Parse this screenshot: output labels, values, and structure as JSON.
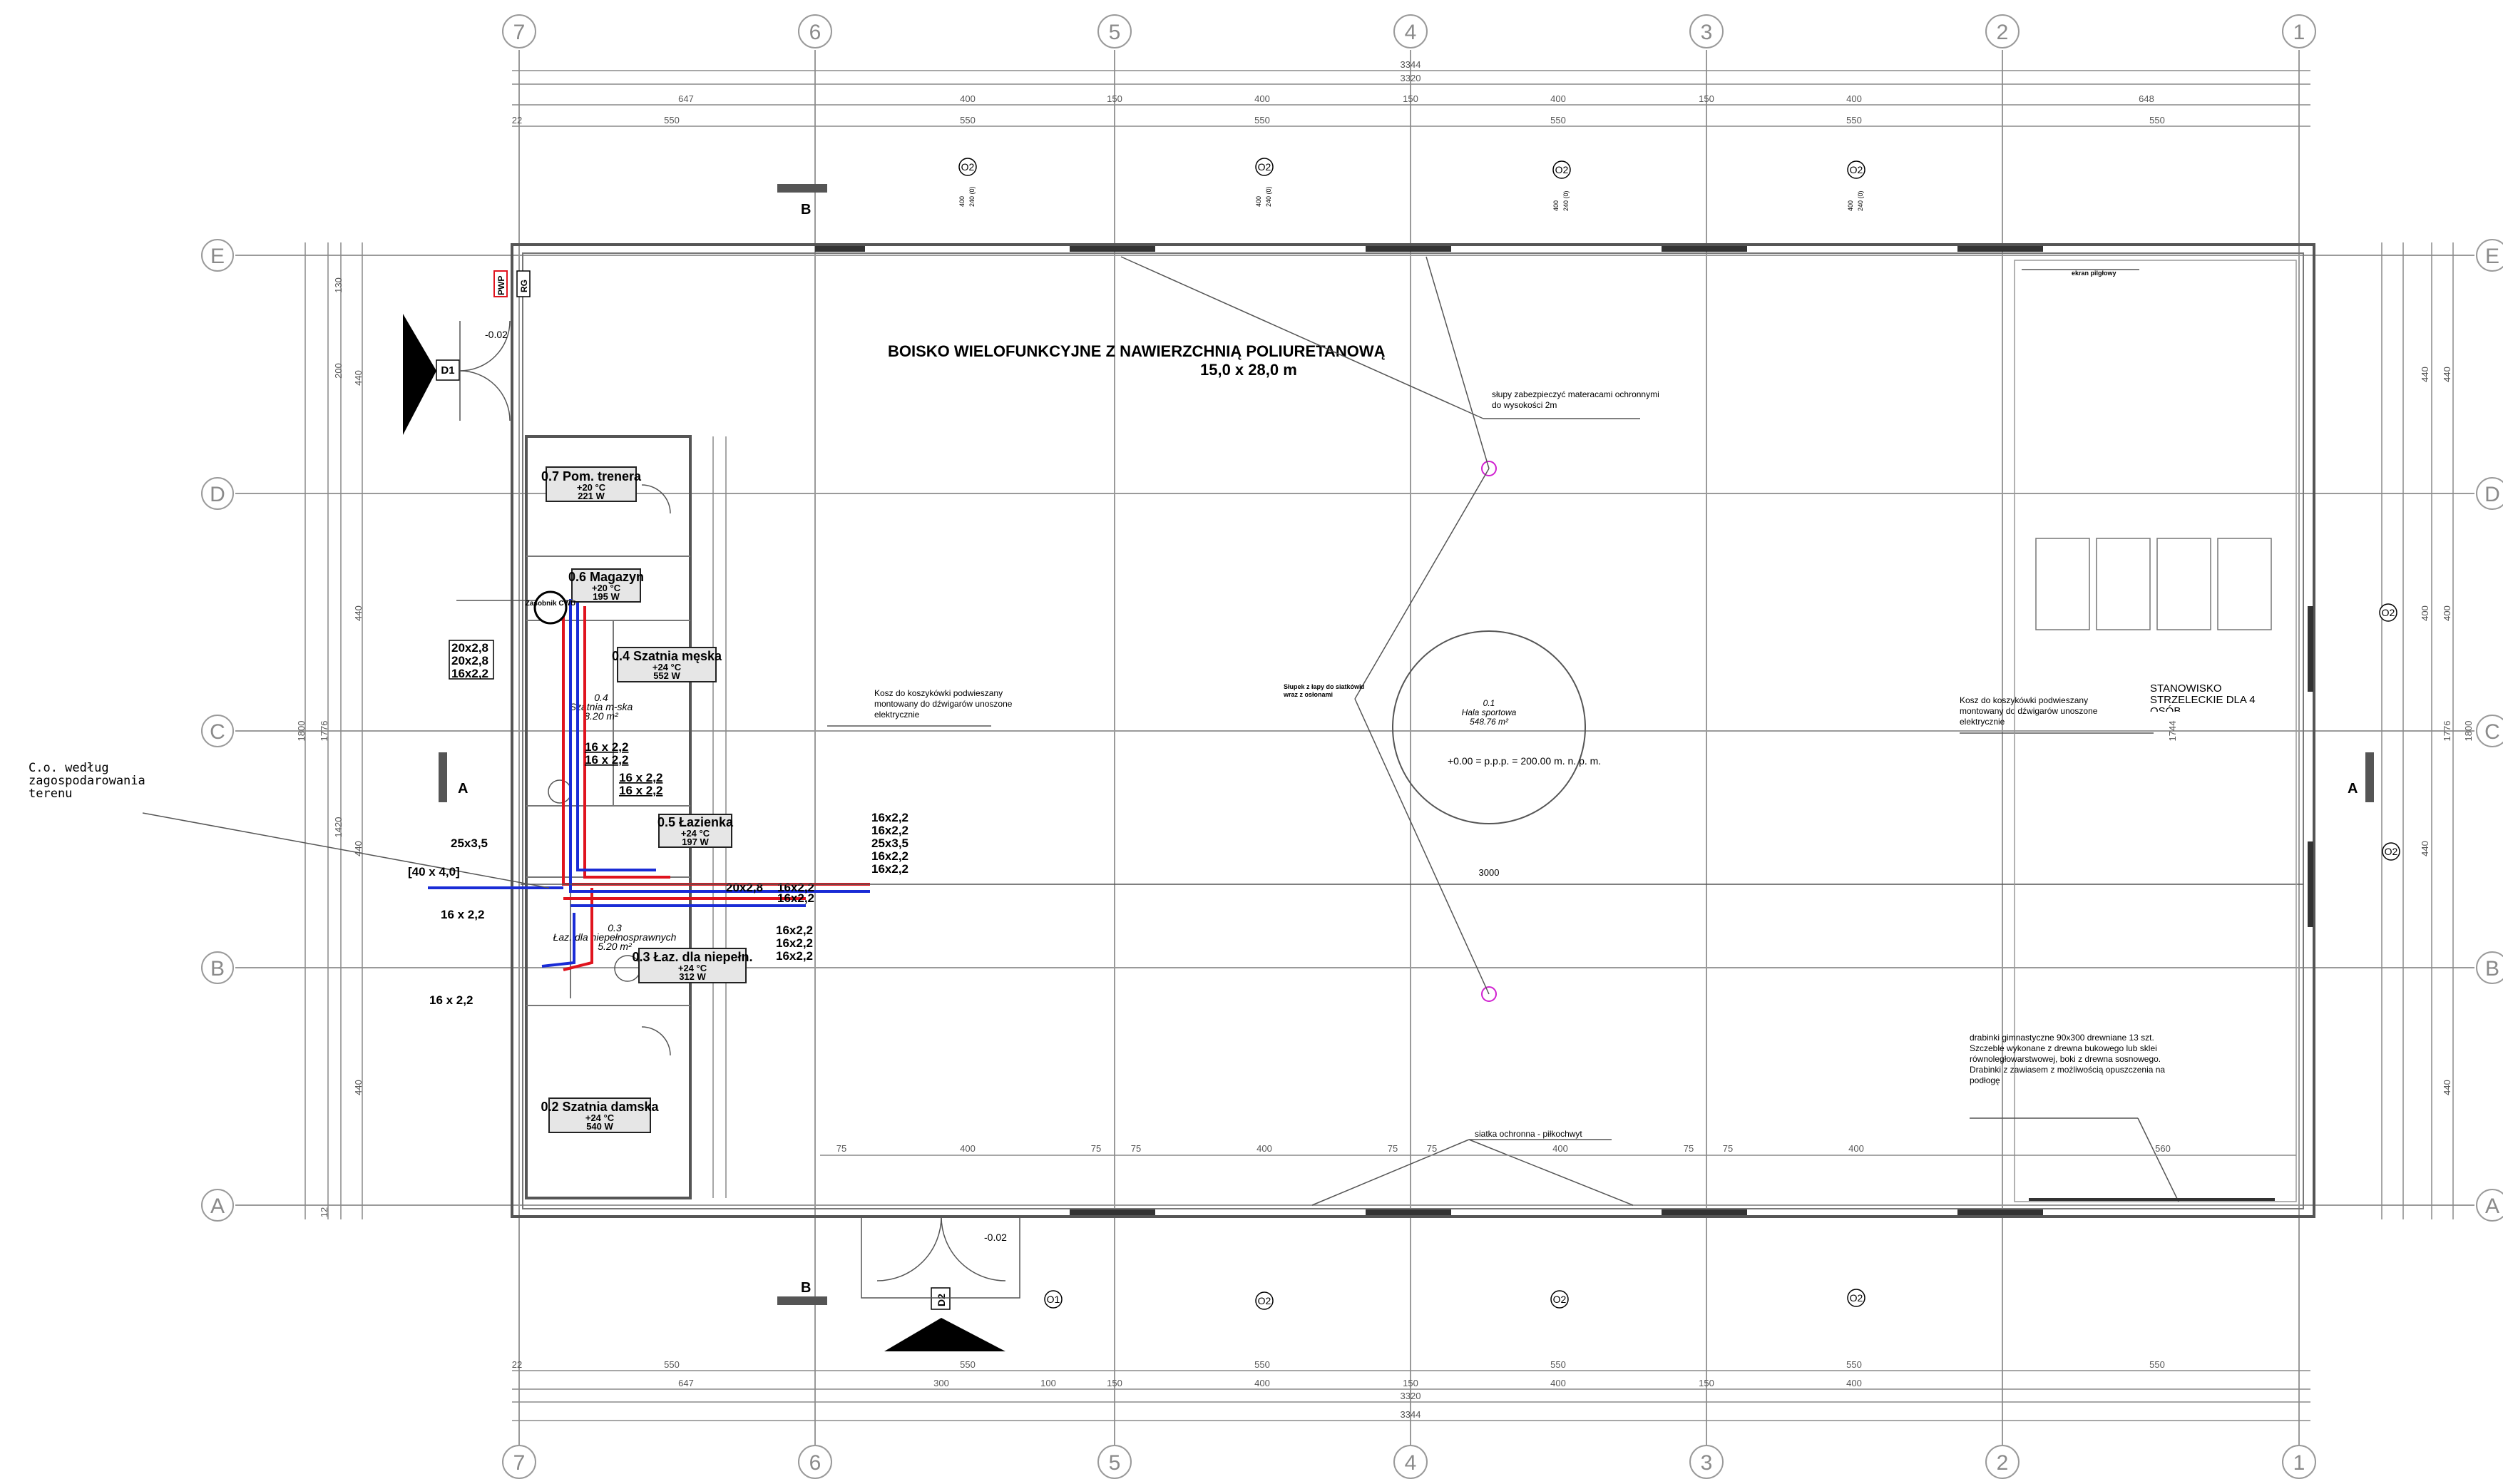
{
  "axes_vertical": [
    "7",
    "6",
    "5",
    "4",
    "3",
    "2",
    "1"
  ],
  "axes_horizontal": [
    "E",
    "D",
    "C",
    "B",
    "A"
  ],
  "dims_top": {
    "overall": "3344",
    "inner": "3320",
    "segments": [
      "647",
      "400",
      "150",
      "400",
      "150",
      "400",
      "150",
      "400",
      "648"
    ],
    "bays": [
      "22",
      "550",
      "550",
      "550",
      "550",
      "550",
      "550"
    ]
  },
  "dims_bottom": {
    "overall": "3344",
    "inner": "3320",
    "segments": [
      "647",
      "300",
      "100",
      "150",
      "400",
      "150",
      "400",
      "150",
      "400"
    ],
    "bays": [
      "22",
      "550",
      "550",
      "550",
      "550",
      "550",
      "550"
    ]
  },
  "dims_left": [
    "130",
    "200",
    "440",
    "440",
    "1420",
    "440",
    "440",
    "1800",
    "1776",
    "12"
  ],
  "dims_right": [
    "440",
    "400",
    "440",
    "1800",
    "1776",
    "440",
    "400",
    "440",
    "1744"
  ],
  "hall_title": "BOISKO WIELOFUNKCYJNE Z NAWIERZCHNIĄ POLIURETANOWĄ",
  "hall_size": "15,0 x 28,0 m",
  "hall_room_no": "0.1",
  "hall_room_name": "Hala sportowa",
  "hall_area": "548.76 m²",
  "hall_level": "+0.00 = p.p.p. = 200.00 m. n. p. m.",
  "hall_center_dim": "3000",
  "notes": {
    "columns": "słupy zabezpieczyć materacami ochronnymi do wysokości 2m",
    "basket_left": "Kosz do koszykówki podwieszany montowany do dźwigarów unoszone elektrycznie",
    "basket_right": "Kosz do koszykówki podwieszany montowany do dźwigarów unoszone elektrycznie",
    "volley": "Słupek z łapy do siatkówki wraz z osłonami",
    "shooting": "STANOWISKO STRZELECKIE DLA 4 OSÓB",
    "net": "siatka ochronna - piłkochwyt",
    "ladders": "drabinki gimnastyczne 90x300 drewniane 13 szt. Szczeble wykonane z drewna bukowego lub sklei równoległowarstwowej, boki z drewna sosnowego. Drabinki z zawiasem z możliwością opuszczenia na podłogę",
    "wall_tag": "ekran pilgłowy",
    "external": "C.o. według zagospodarowania terenu",
    "pwp": "PWP",
    "rg": "RG",
    "door_level_top": "-0.02",
    "door_level_bottom": "-0.02",
    "corridor_room": "0.4",
    "corridor_name": "Szatnia m-ska",
    "corridor_area": "8.20 m²",
    "bath_room": "0.3",
    "bath_name": "Łaz. dla niepełnosprawnych",
    "bath_area": "5.20 m²",
    "boiler": "Zasobnik CWU"
  },
  "rooms": [
    {
      "name": "0.7 Pom. trenera",
      "temp": "+20 °C",
      "power": "221 W"
    },
    {
      "name": "0.6 Magazyn",
      "temp": "+20 °C",
      "power": "195 W"
    },
    {
      "name": "0.4 Szatnia męska",
      "temp": "+24 °C",
      "power": "552 W"
    },
    {
      "name": "0.5 Łazienka",
      "temp": "+24 °C",
      "power": "197 W"
    },
    {
      "name": "0.3 Łaz. dla niepełn.",
      "temp": "+24 °C",
      "power": "312 W"
    },
    {
      "name": "0.2 Szatnia damska",
      "temp": "+24 °C",
      "power": "540 W"
    }
  ],
  "pipes": {
    "group1": [
      "20x2,8",
      "20x2,8",
      "16x2,2"
    ],
    "group2": [
      "16 x 2,2",
      "16 x 2,2"
    ],
    "group3": [
      "16 x 2,2",
      "16 x 2,2"
    ],
    "group4": [
      "16x2,2",
      "16x2,2",
      "25x3,5",
      "16x2,2",
      "16x2,2"
    ],
    "group5": [
      "20x2,8",
      "16x2,2"
    ],
    "group6": [
      "16x2,2",
      "16x2,2",
      "16x2,2"
    ],
    "p25": "25x3,5",
    "p40": "[40 x 4,0]",
    "p16a": "16 x 2,2",
    "p16b": "16 x 2,2"
  },
  "sections": {
    "a_left": "A",
    "a_right": "A",
    "b_top": "B",
    "b_bottom": "B"
  },
  "doors": {
    "d1": "D1",
    "d2": "D2"
  },
  "windows_top": [
    "O2",
    "O2",
    "O2",
    "O2"
  ],
  "windows_bottom": [
    "O1",
    "O2",
    "O2",
    "O2"
  ],
  "windows_right": [
    "O2",
    "O2"
  ],
  "window_dims": {
    "w": "400",
    "h": "240 (0)"
  },
  "small_dims": [
    "75",
    "400",
    "75",
    "75",
    "400",
    "75",
    "75",
    "400",
    "75",
    "75",
    "400",
    "560"
  ]
}
